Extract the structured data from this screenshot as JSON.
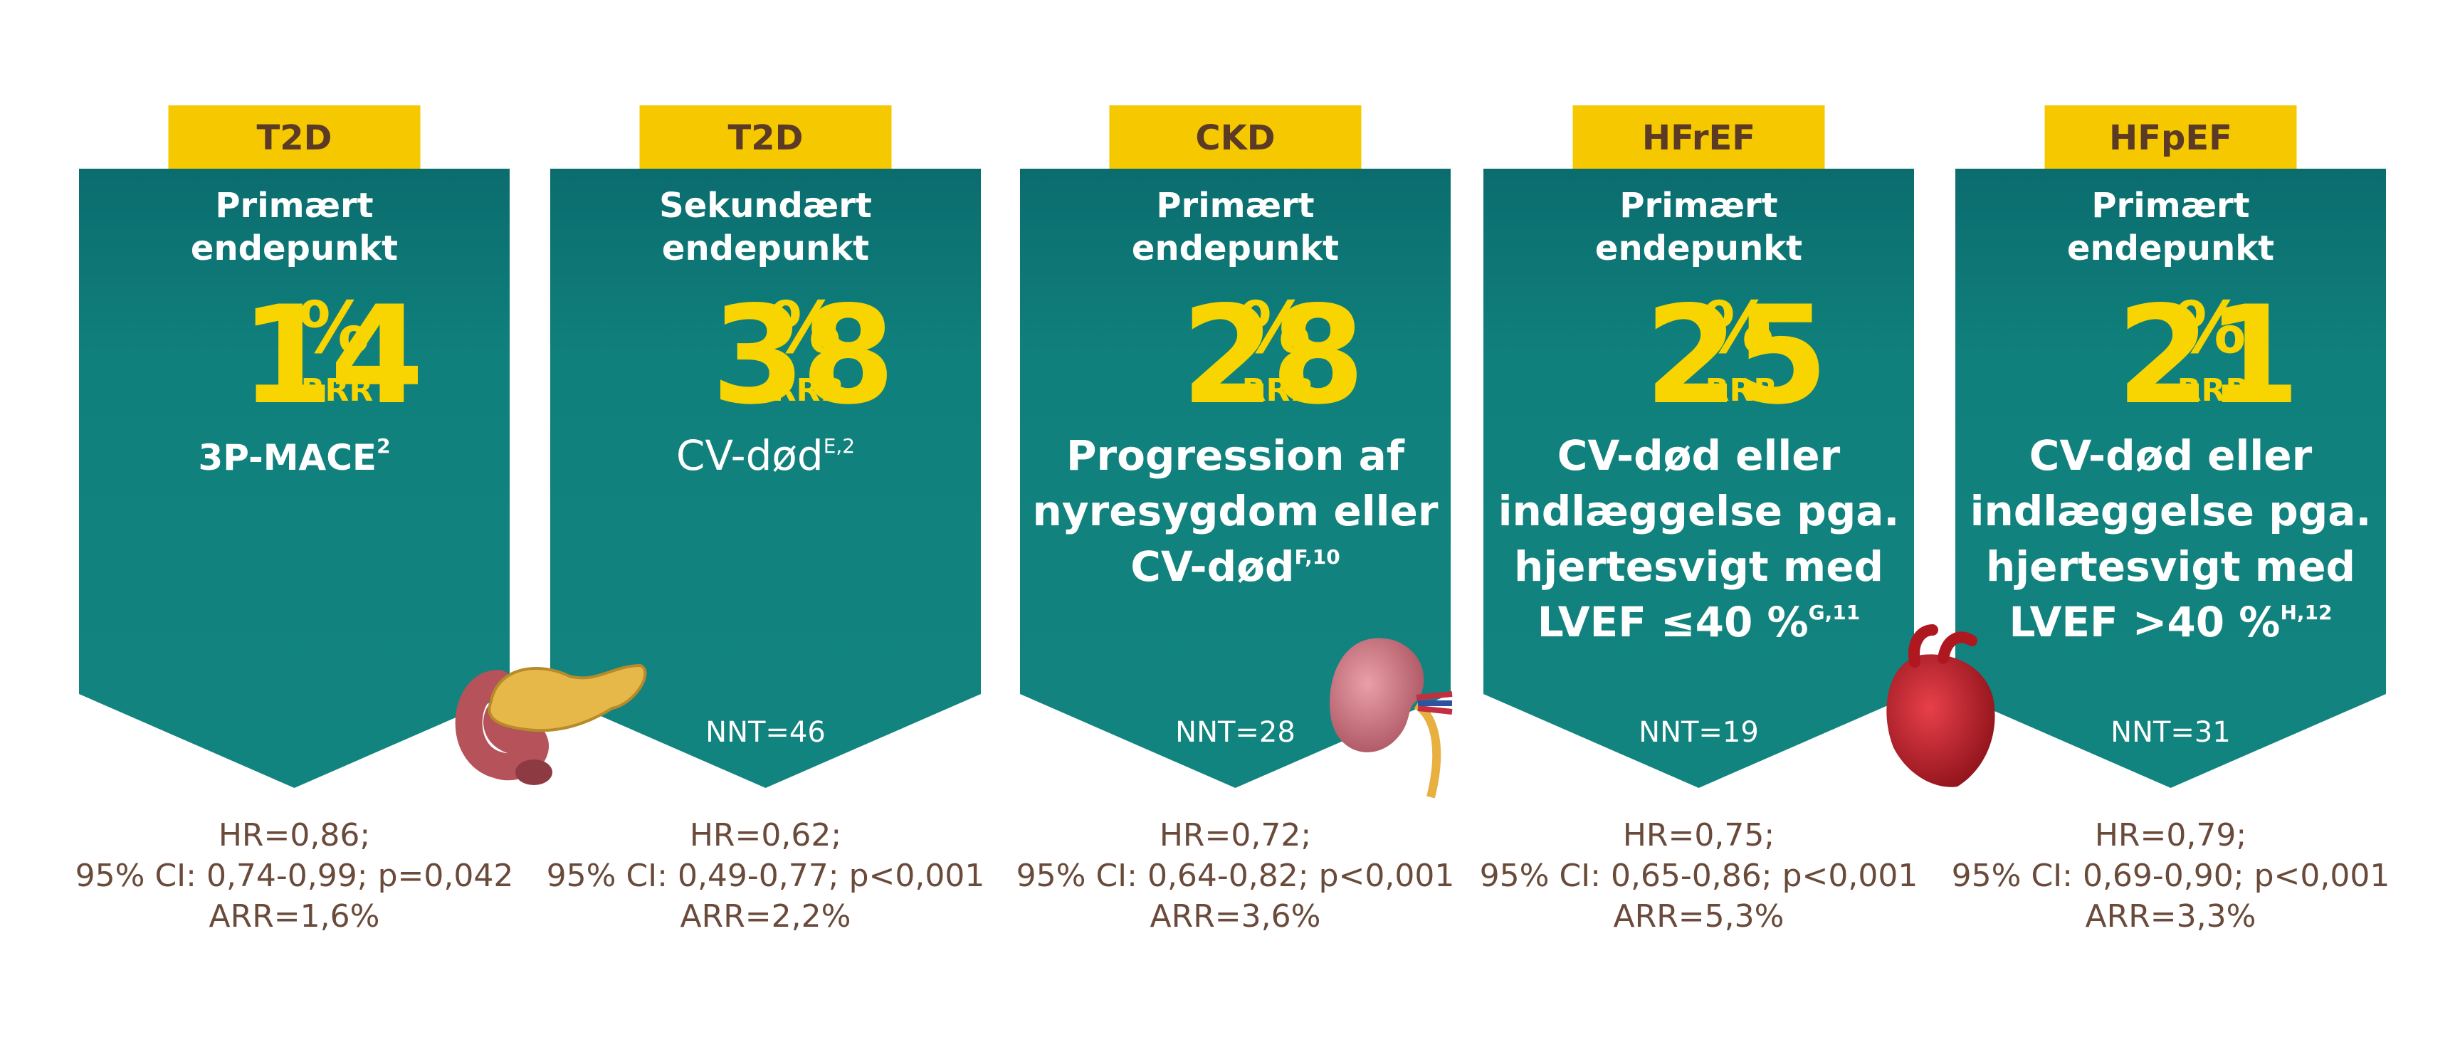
{
  "cards": [
    {
      "tag": "T2D",
      "endpoint": [
        "Primært",
        "endepunkt"
      ],
      "value": "14",
      "unit": "%",
      "measure": "RRR",
      "outcome": [
        "3P-MACE"
      ],
      "outcome_sup": "2",
      "hr": [
        "HR=0,86;",
        "95% CI: 0,74-0,99; p=0,042",
        "ARR=1,6%"
      ]
    },
    {
      "tag": "T2D",
      "endpoint": [
        "Sekundært",
        "endepunkt"
      ],
      "value": "38",
      "unit": "%",
      "measure": "RRR",
      "outcome": [
        "CV-død"
      ],
      "outcome_sup": "E,2",
      "nnt": "NNT=46",
      "hr": [
        "HR=0,62;",
        "95% CI: 0,49-0,77; p<0,001",
        "ARR=2,2%"
      ]
    },
    {
      "tag": "CKD",
      "endpoint": [
        "Primært",
        "endepunkt"
      ],
      "value": "28",
      "unit": "%",
      "measure": "RRR",
      "outcome": [
        "Progression af",
        "nyresygdom eller",
        "CV-død"
      ],
      "outcome_sup": "F,10",
      "nnt": "NNT=28",
      "hr": [
        "HR=0,72;",
        "95% CI: 0,64-0,82; p<0,001",
        "ARR=3,6%"
      ]
    },
    {
      "tag": "HFrEF",
      "endpoint": [
        "Primært",
        "endepunkt"
      ],
      "value": "25",
      "unit": "%",
      "measure": "RRR",
      "outcome": [
        "CV-død eller",
        "indlæggelse pga.",
        "hjertesvigt med",
        "LVEF ≤40 %"
      ],
      "outcome_sup": "G,11",
      "nnt": "NNT=19",
      "hr": [
        "HR=0,75;",
        "95% CI: 0,65-0,86; p<0,001",
        "ARR=5,3%"
      ]
    },
    {
      "tag": "HFpEF",
      "endpoint": [
        "Primært",
        "endepunkt"
      ],
      "value": "21",
      "unit": "%",
      "measure": "RRR",
      "outcome": [
        "CV-død eller",
        "indlæggelse pga.",
        "hjertesvigt med",
        "LVEF >40 %"
      ],
      "outcome_sup": "H,12",
      "nnt": "NNT=31",
      "hr": [
        "HR=0,79;",
        "95% CI: 0,69-0,90; p<0,001",
        "ARR=3,3%"
      ]
    }
  ]
}
